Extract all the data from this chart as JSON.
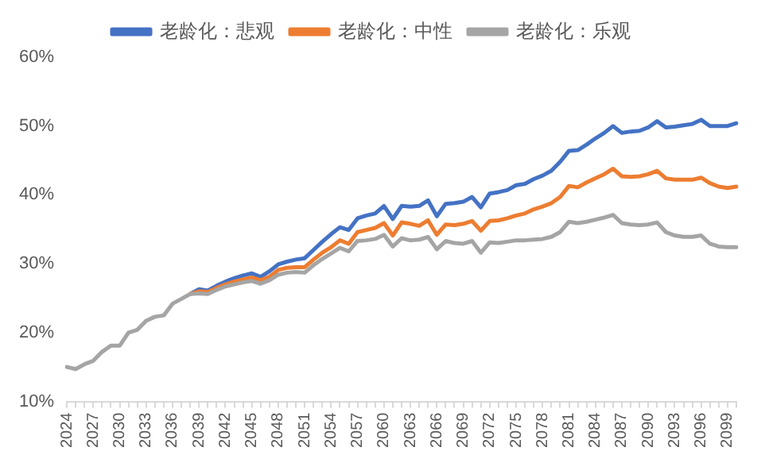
{
  "chart_data": {
    "type": "line",
    "legend": "top",
    "grid": false,
    "marker": "none",
    "line_style": "solid",
    "categories": [
      "2024",
      null,
      null,
      "2027",
      null,
      null,
      "2030",
      null,
      null,
      "2033",
      null,
      null,
      "2036",
      null,
      null,
      "2039",
      null,
      null,
      "2042",
      null,
      null,
      "2045",
      null,
      null,
      "2048",
      null,
      null,
      "2051",
      null,
      null,
      "2054",
      null,
      null,
      "2057",
      null,
      null,
      "2060",
      null,
      null,
      "2063",
      null,
      null,
      "2066",
      null,
      null,
      "2069",
      null,
      null,
      "2072",
      null,
      null,
      "2075",
      null,
      null,
      "2078",
      null,
      null,
      "2081",
      null,
      null,
      "2084",
      null,
      null,
      "2087",
      null,
      null,
      "2090",
      null,
      null,
      "2093",
      null,
      null,
      "2096",
      null,
      null,
      "2099",
      null
    ],
    "ylim": [
      10,
      60
    ],
    "yticks": [
      {
        "value": 10,
        "label": "10%"
      },
      {
        "value": 20,
        "label": "20%"
      },
      {
        "value": 30,
        "label": "30%"
      },
      {
        "value": 40,
        "label": "40%"
      },
      {
        "value": 50,
        "label": "50%"
      },
      {
        "value": 60,
        "label": "60%"
      }
    ],
    "series": [
      {
        "name": "老龄化：悲观",
        "color": "#4472c4",
        "values": [
          null,
          null,
          null,
          null,
          null,
          null,
          null,
          null,
          null,
          null,
          null,
          null,
          null,
          null,
          25.6,
          26.3,
          26.1,
          26.8,
          27.4,
          27.9,
          28.3,
          28.6,
          28.1,
          28.9,
          29.9,
          30.3,
          30.6,
          30.8,
          32.0,
          33.2,
          34.3,
          35.3,
          34.9,
          36.6,
          37.0,
          37.3,
          38.4,
          36.5,
          38.4,
          38.3,
          38.4,
          39.2,
          36.9,
          38.7,
          38.8,
          39.0,
          39.7,
          38.2,
          40.2,
          40.4,
          40.7,
          41.4,
          41.6,
          42.3,
          42.8,
          43.5,
          44.8,
          46.4,
          46.5,
          47.3,
          48.2,
          49.0,
          50.0,
          49.0,
          49.2,
          49.3,
          49.8,
          50.7,
          49.8,
          49.9,
          50.1,
          50.3,
          50.9,
          50.0,
          50.0,
          50.0,
          50.4
        ]
      },
      {
        "name": "老龄化：中性",
        "color": "#ed7d31",
        "values": [
          null,
          null,
          null,
          null,
          null,
          null,
          null,
          null,
          null,
          null,
          null,
          null,
          null,
          null,
          25.6,
          26.0,
          25.9,
          26.5,
          27.0,
          27.4,
          27.7,
          28.0,
          27.6,
          28.1,
          29.1,
          29.4,
          29.5,
          29.5,
          30.6,
          31.6,
          32.4,
          33.4,
          32.9,
          34.6,
          34.9,
          35.2,
          35.9,
          34.1,
          36.0,
          35.8,
          35.5,
          36.3,
          34.2,
          35.7,
          35.6,
          35.8,
          36.2,
          34.8,
          36.2,
          36.3,
          36.6,
          37.0,
          37.3,
          37.9,
          38.3,
          38.8,
          39.7,
          41.3,
          41.1,
          41.8,
          42.4,
          43.0,
          43.8,
          42.7,
          42.6,
          42.7,
          43.0,
          43.5,
          42.4,
          42.2,
          42.2,
          42.2,
          42.5,
          41.7,
          41.2,
          41.0,
          41.2
        ]
      },
      {
        "name": "老龄化：乐观",
        "color": "#a5a5a5",
        "values": [
          15.0,
          14.7,
          15.4,
          15.9,
          17.2,
          18.1,
          18.1,
          20.0,
          20.4,
          21.7,
          22.3,
          22.5,
          24.2,
          24.9,
          25.6,
          25.7,
          25.6,
          26.2,
          26.7,
          27.0,
          27.3,
          27.5,
          27.1,
          27.6,
          28.4,
          28.7,
          28.8,
          28.7,
          29.8,
          30.7,
          31.5,
          32.3,
          31.8,
          33.3,
          33.4,
          33.6,
          34.2,
          32.5,
          33.7,
          33.4,
          33.5,
          33.9,
          32.1,
          33.3,
          33.0,
          32.9,
          33.3,
          31.6,
          33.1,
          33.0,
          33.2,
          33.4,
          33.4,
          33.5,
          33.6,
          33.9,
          34.6,
          36.1,
          35.9,
          36.1,
          36.4,
          36.7,
          37.1,
          35.9,
          35.7,
          35.6,
          35.7,
          36.0,
          34.6,
          34.1,
          33.9,
          33.9,
          34.1,
          32.9,
          32.5,
          32.4,
          32.4
        ]
      }
    ]
  }
}
